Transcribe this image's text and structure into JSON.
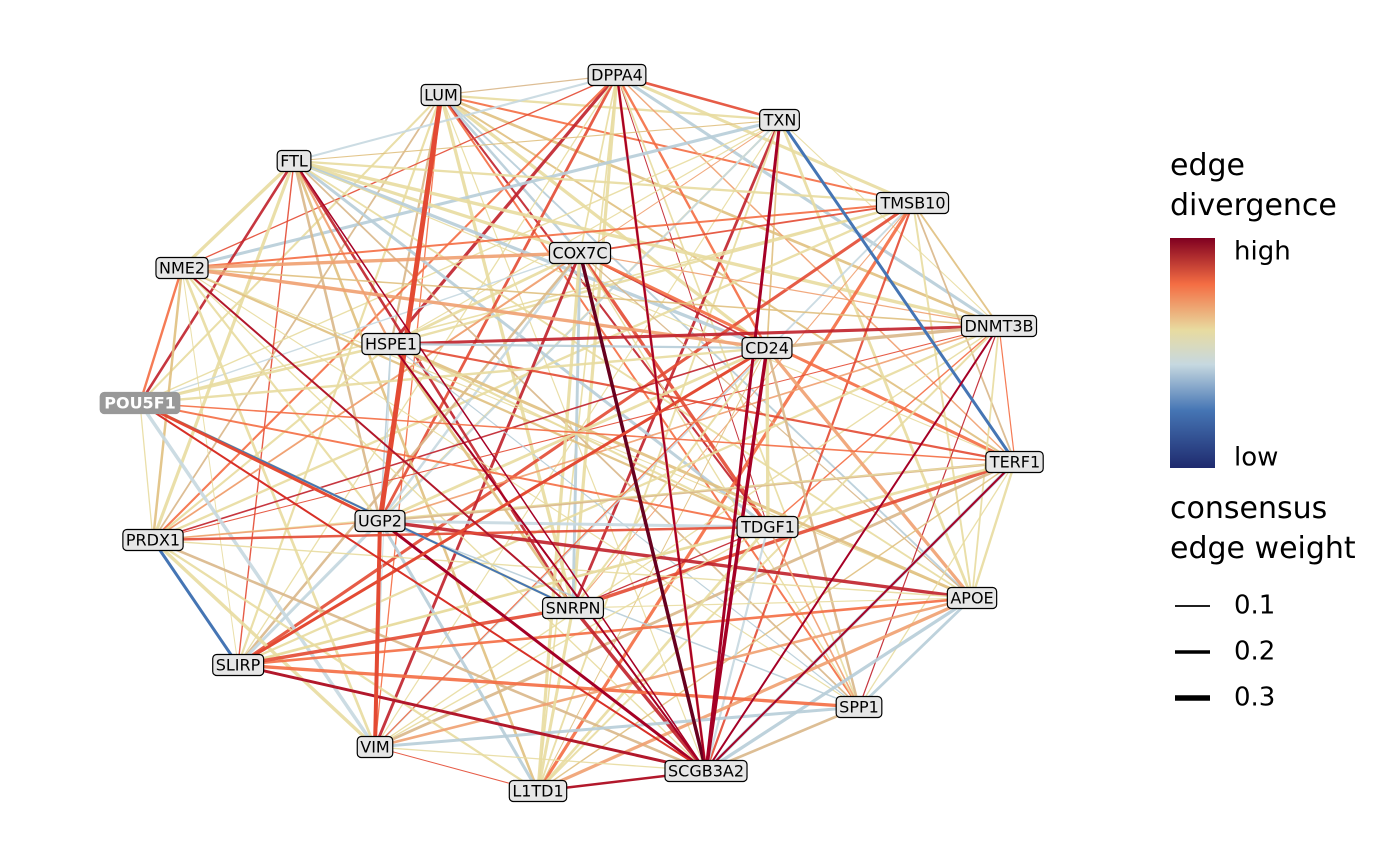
{
  "nodes": [
    {
      "label": "LUM"
    },
    {
      "label": "DPPA4"
    },
    {
      "label": "TXN"
    },
    {
      "label": "FTL"
    },
    {
      "label": "TMSB10"
    },
    {
      "label": "COX7C"
    },
    {
      "label": "NME2"
    },
    {
      "label": "DNMT3B"
    },
    {
      "label": "HSPE1"
    },
    {
      "label": "CD24"
    },
    {
      "label": "POU5F1"
    },
    {
      "label": "TERF1"
    },
    {
      "label": "UGP2"
    },
    {
      "label": "TDGF1"
    },
    {
      "label": "PRDX1"
    },
    {
      "label": "APOE"
    },
    {
      "label": "SNRPN"
    },
    {
      "label": "SLIRP"
    },
    {
      "label": "SPP1"
    },
    {
      "label": "VIM"
    },
    {
      "label": "SCGB3A2"
    },
    {
      "label": "L1TD1"
    }
  ],
  "legend": {
    "divergence_title": [
      "edge",
      "divergence"
    ],
    "high": "high",
    "low": "low",
    "weight_title": [
      "consensus",
      "edge weight"
    ],
    "weights": [
      0.1,
      0.2,
      0.3
    ]
  }
}
